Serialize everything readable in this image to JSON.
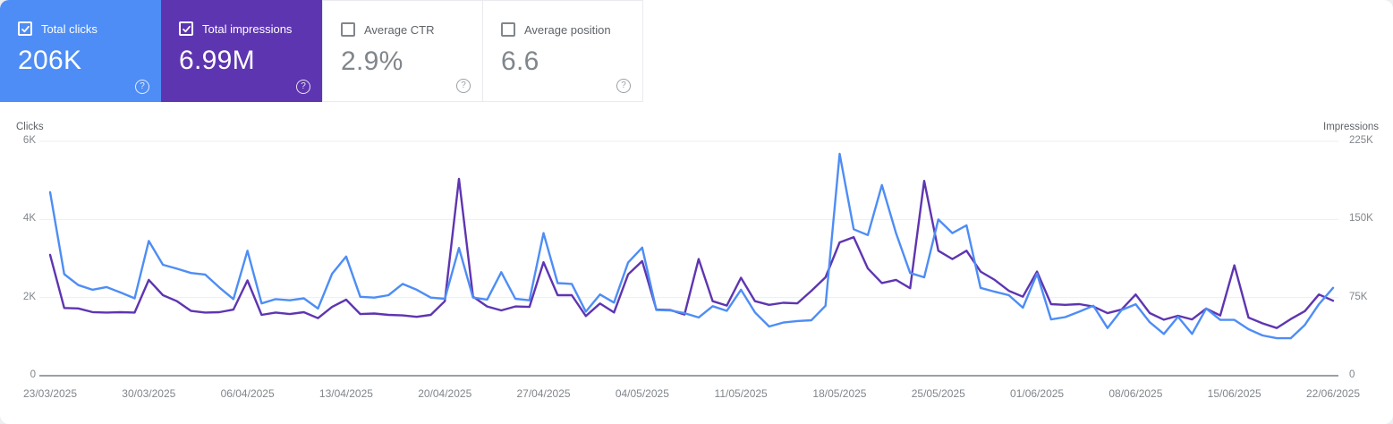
{
  "cards": [
    {
      "label": "Total clicks",
      "value": "206K",
      "checked": true
    },
    {
      "label": "Total impressions",
      "value": "6.99M",
      "checked": true
    },
    {
      "label": "Average CTR",
      "value": "2.9%",
      "checked": false
    },
    {
      "label": "Average position",
      "value": "6.6",
      "checked": false
    }
  ],
  "colors": {
    "clicks_blue": "#4e8df5",
    "impressions_purple": "#5e35b1",
    "gridline": "#eceef0",
    "axis_line": "#9aa0a6"
  },
  "icons": {
    "help_glyph": "?"
  },
  "chart_data": {
    "type": "line",
    "title": "",
    "x_range": [
      "23/03/2025",
      "22/06/2025"
    ],
    "tick_labels": [
      "23/03/2025",
      "30/03/2025",
      "06/04/2025",
      "13/04/2025",
      "20/04/2025",
      "27/04/2025",
      "04/05/2025",
      "11/05/2025",
      "18/05/2025",
      "25/05/2025",
      "01/06/2025",
      "08/06/2025",
      "15/06/2025",
      "22/06/2025"
    ],
    "left_axis": {
      "title": "Clicks",
      "ticks": [
        "6K",
        "4K",
        "2K",
        "0"
      ],
      "tick_values": [
        6000,
        4000,
        2000,
        0
      ],
      "max": 6000
    },
    "right_axis": {
      "title": "Impressions",
      "ticks": [
        "225K",
        "150K",
        "75K",
        "0"
      ],
      "tick_values": [
        225000,
        150000,
        75000,
        0
      ],
      "max": 225000
    },
    "grid": "horizontal",
    "legend_position": "none",
    "series": [
      {
        "name": "Clicks",
        "axis": "left",
        "color": "#4e8df5",
        "values": [
          4700,
          2600,
          2320,
          2200,
          2270,
          2130,
          1980,
          3450,
          2840,
          2740,
          2630,
          2590,
          2260,
          1960,
          3200,
          1850,
          1960,
          1930,
          1980,
          1720,
          2610,
          3050,
          2020,
          2000,
          2060,
          2350,
          2200,
          2000,
          1970,
          3270,
          2000,
          1950,
          2650,
          1970,
          1930,
          3650,
          2370,
          2350,
          1640,
          2080,
          1870,
          2900,
          3280,
          1680,
          1670,
          1600,
          1490,
          1780,
          1660,
          2200,
          1620,
          1260,
          1360,
          1400,
          1420,
          1790,
          5680,
          3750,
          3600,
          4880,
          3650,
          2630,
          2520,
          4000,
          3650,
          3850,
          2250,
          2150,
          2060,
          1740,
          2610,
          1440,
          1500,
          1640,
          1790,
          1220,
          1680,
          1830,
          1370,
          1070,
          1510,
          1070,
          1720,
          1430,
          1430,
          1190,
          1030,
          960,
          960,
          1300,
          1830,
          2250
        ]
      },
      {
        "name": "Impressions",
        "axis": "right",
        "color": "#5e35b1",
        "values": [
          116000,
          65000,
          64600,
          61100,
          60600,
          61000,
          60600,
          92000,
          77300,
          71500,
          62200,
          60600,
          61000,
          63500,
          91500,
          58400,
          60600,
          59200,
          61000,
          55200,
          66000,
          73000,
          59200,
          59700,
          58400,
          57900,
          56500,
          58400,
          71500,
          189000,
          75900,
          66500,
          62700,
          66500,
          66000,
          109000,
          77300,
          77300,
          57300,
          69300,
          60700,
          97300,
          110000,
          63500,
          63000,
          58700,
          112000,
          71500,
          67300,
          94000,
          71500,
          68000,
          70000,
          69500,
          81500,
          94500,
          128000,
          133000,
          103000,
          89000,
          92000,
          84000,
          187000,
          120000,
          112000,
          120000,
          100000,
          92000,
          81500,
          75800,
          100000,
          68700,
          68000,
          68700,
          66400,
          60000,
          63500,
          78000,
          60100,
          53800,
          57500,
          54000,
          64400,
          57800,
          106000,
          55800,
          50200,
          45800,
          54400,
          62000,
          78000,
          72000
        ]
      }
    ]
  }
}
